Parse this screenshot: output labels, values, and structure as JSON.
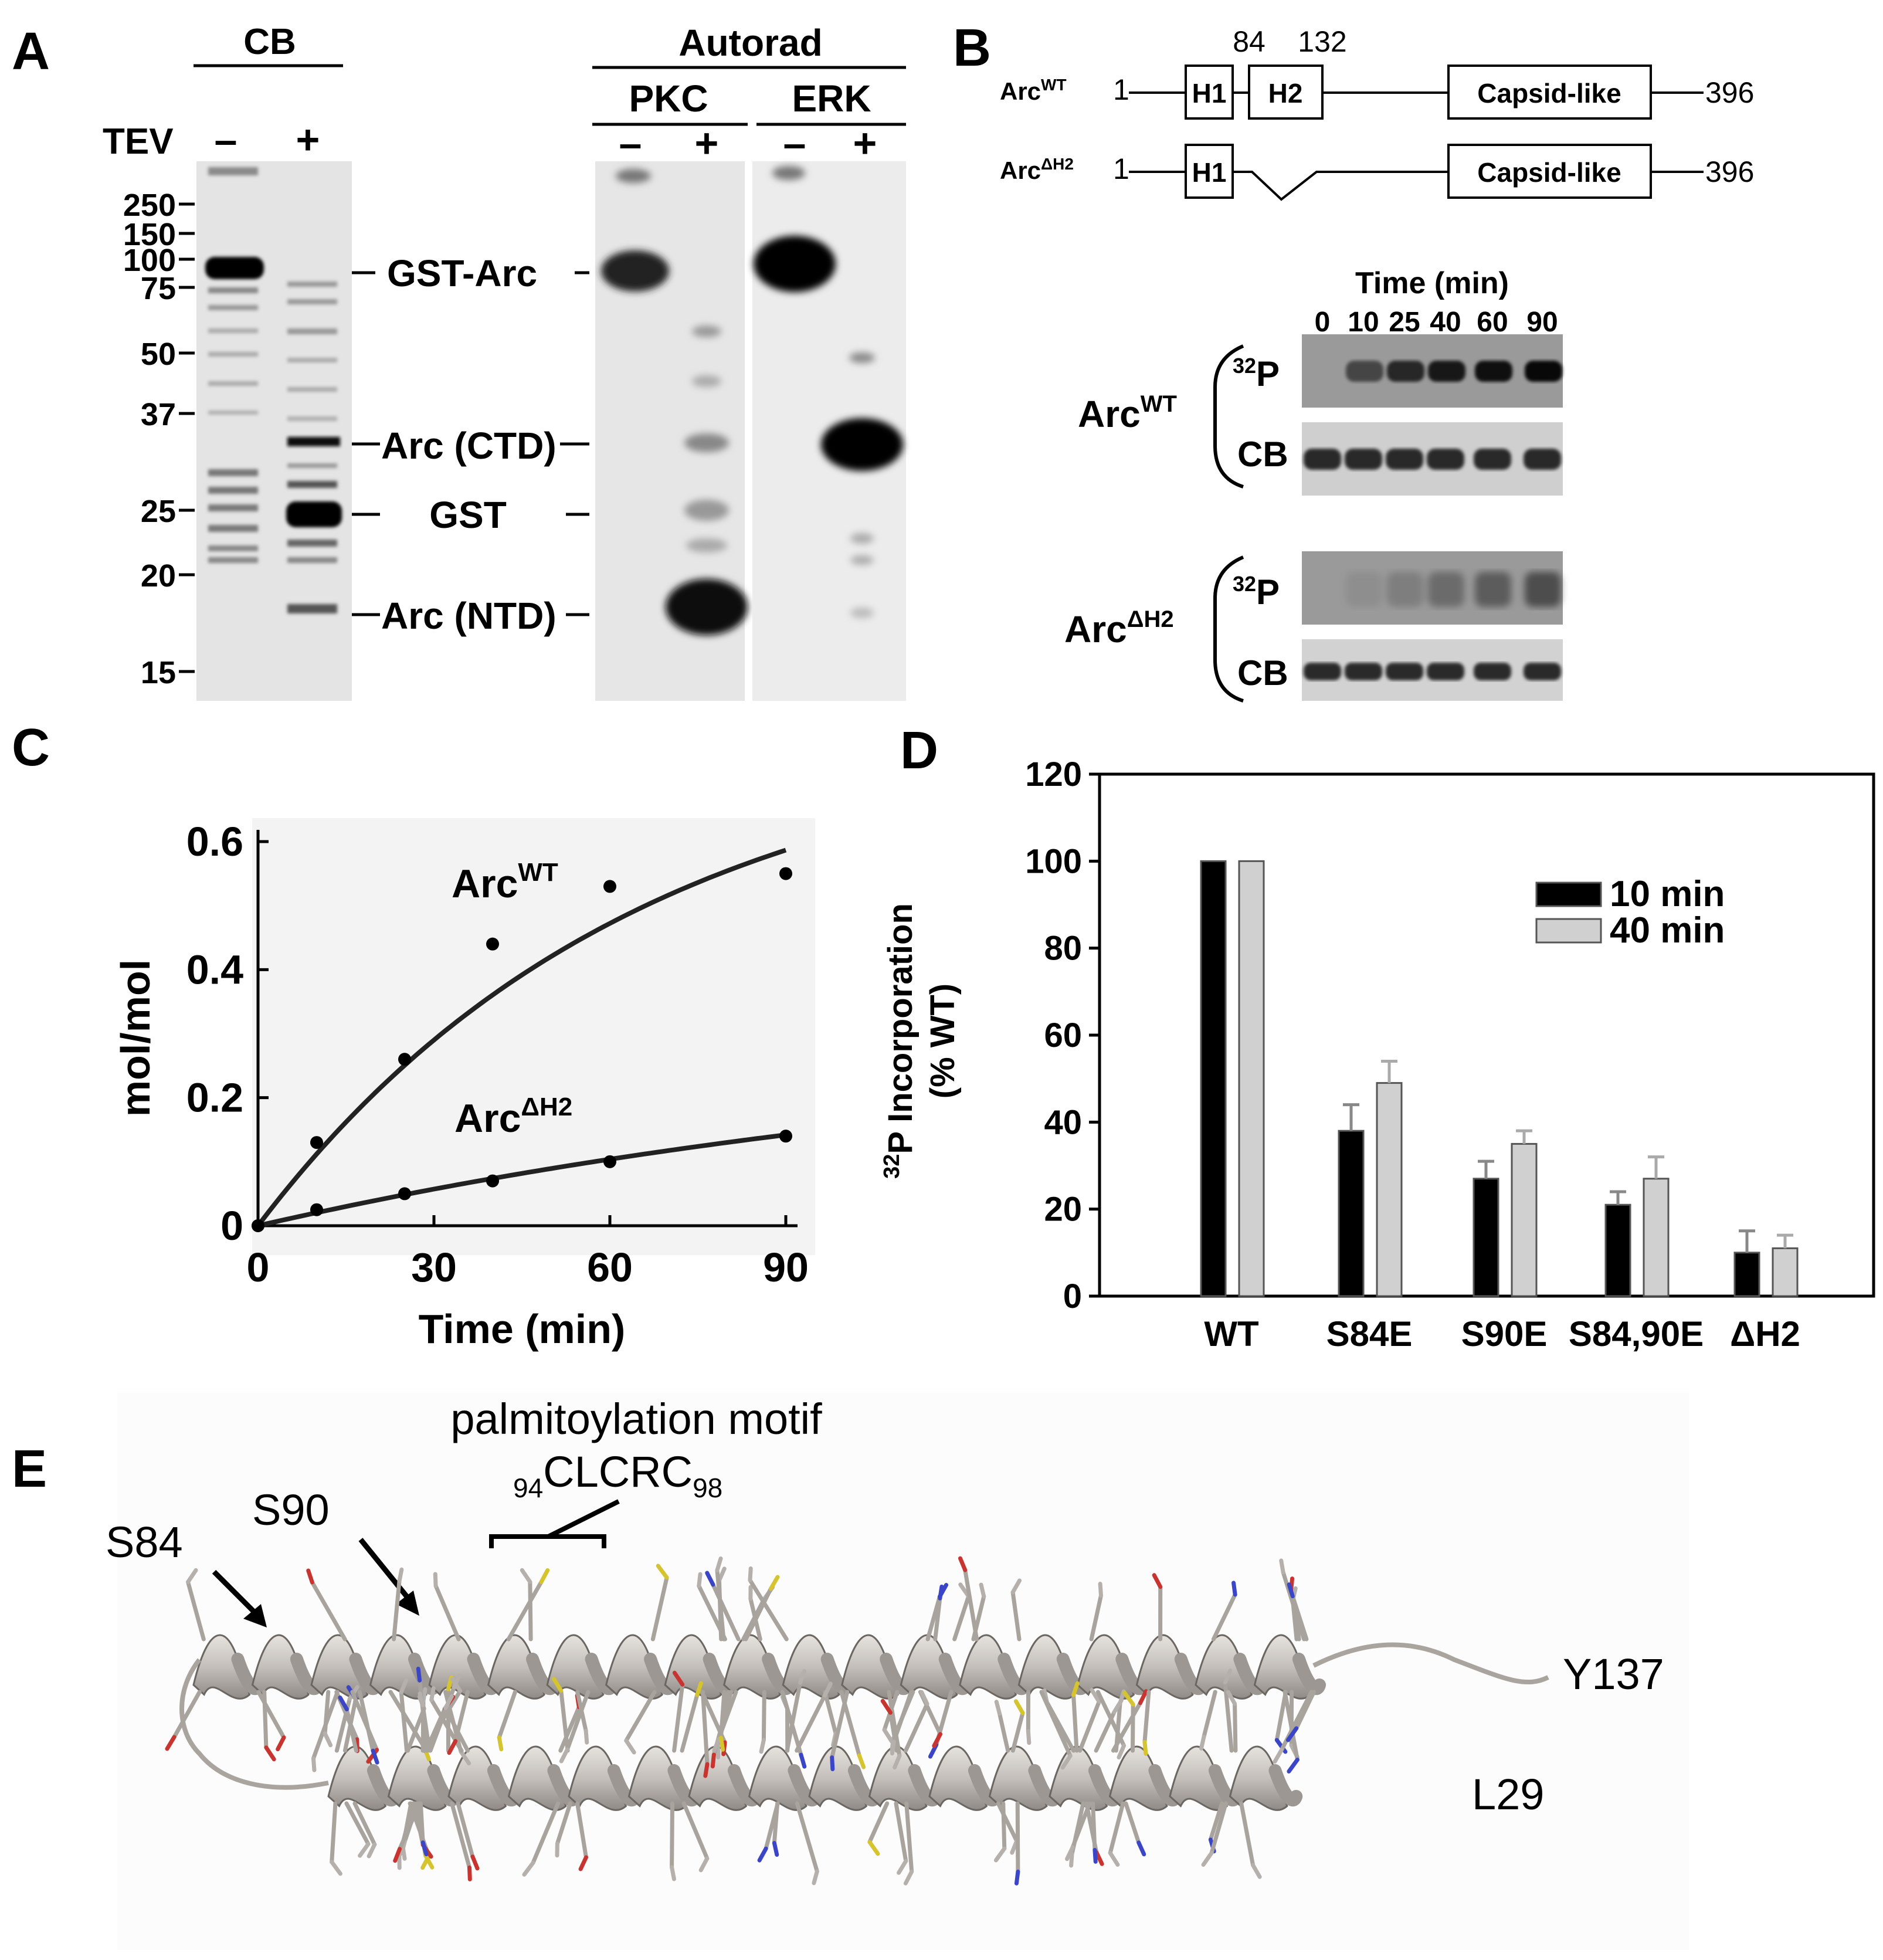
{
  "panels": {
    "A": {
      "letter": "A",
      "cb_header": "CB",
      "autorad_header": "Autorad",
      "pkc_header": "PKC",
      "erk_header": "ERK",
      "tev_label": "TEV",
      "minus": "–",
      "plus": "+",
      "markers": [
        "250",
        "150",
        "100",
        "75",
        "50",
        "37",
        "25",
        "20",
        "15"
      ],
      "band_labels": [
        "GST-Arc",
        "Arc (CTD)",
        "GST",
        "Arc (NTD)"
      ]
    },
    "B": {
      "letter": "B",
      "site_84": "84",
      "site_132": "132",
      "arc_wt_base": "Arc",
      "arc_wt_sup": "WT",
      "arc_dh2_base": "Arc",
      "arc_dh2_sup": "ΔH2",
      "start": "1",
      "end": "396",
      "h1": "H1",
      "h2": "H2",
      "capsid": "Capsid-like",
      "time_title": "Time (min)",
      "time_points": [
        "0",
        "10",
        "25",
        "40",
        "60",
        "90"
      ],
      "p32_sup": "32",
      "p32_base": "P",
      "cb": "CB"
    },
    "C": {
      "letter": "C",
      "curve_label_wt_base": "Arc",
      "curve_label_wt_sup": "WT",
      "curve_label_dh2_base": "Arc",
      "curve_label_dh2_sup": "ΔH2"
    },
    "D": {
      "letter": "D",
      "ylabel_line1_sup": "32",
      "ylabel_line1": "P Incorporation",
      "ylabel_line2": "(% WT)"
    },
    "E": {
      "letter": "E",
      "motif_title": "palmitoylation motif",
      "motif_pre": "94",
      "motif_main": "CLCRC",
      "motif_post": "98",
      "s84": "S84",
      "s90": "S90",
      "y137": "Y137",
      "l29": "L29"
    }
  },
  "chart_data": [
    {
      "type": "scatter",
      "panel": "C",
      "xlabel": "Time (min)",
      "ylabel": "mol/mol",
      "xlim": [
        0,
        90
      ],
      "ylim": [
        0,
        0.6
      ],
      "xticks": [
        "0",
        "30",
        "60",
        "90"
      ],
      "yticks": [
        "0",
        "0.2",
        "0.4",
        "0.6"
      ],
      "series": [
        {
          "name": "ArcWT",
          "x": [
            0,
            10,
            25,
            40,
            60,
            90
          ],
          "y": [
            0,
            0.13,
            0.26,
            0.44,
            0.53,
            0.55
          ],
          "fit": "saturating"
        },
        {
          "name": "ArcΔH2",
          "x": [
            0,
            10,
            25,
            40,
            60,
            90
          ],
          "y": [
            0,
            0.025,
            0.05,
            0.07,
            0.1,
            0.14
          ],
          "fit": "saturating"
        }
      ]
    },
    {
      "type": "bar",
      "panel": "D",
      "categories": [
        "WT",
        "S84E",
        "S90E",
        "S84,90E",
        "ΔH2"
      ],
      "ylabel": "32P Incorporation (% WT)",
      "ylim": [
        0,
        120
      ],
      "yticks": [
        "0",
        "20",
        "40",
        "60",
        "80",
        "100",
        "120"
      ],
      "legend_position": "top-right",
      "series": [
        {
          "name": "10 min",
          "color": "#000000",
          "values": [
            100,
            38,
            27,
            21,
            10
          ],
          "errors": [
            0,
            6,
            4,
            3,
            5
          ]
        },
        {
          "name": "40 min",
          "color": "#d0d0d0",
          "values": [
            100,
            49,
            35,
            27,
            11
          ],
          "errors": [
            0,
            5,
            3,
            5,
            3
          ]
        }
      ]
    }
  ]
}
